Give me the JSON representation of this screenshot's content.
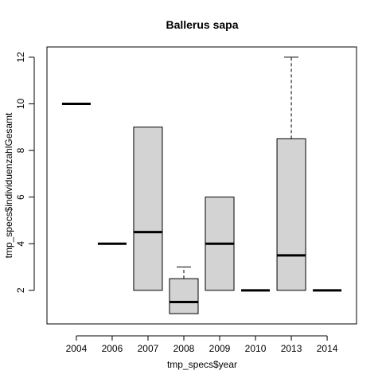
{
  "chart_data": {
    "type": "box",
    "title": "Ballerus sapa",
    "xlabel": "tmp_specs$year",
    "ylabel": "tmp_specs$individuenzahlGesamt",
    "categories": [
      "2004",
      "2006",
      "2007",
      "2008",
      "2009",
      "2010",
      "2013",
      "2014"
    ],
    "boxes": [
      {
        "category": "2004",
        "min": 10,
        "q1": 10,
        "median": 10,
        "q3": 10,
        "max": 10
      },
      {
        "category": "2006",
        "min": 4,
        "q1": 4,
        "median": 4,
        "q3": 4,
        "max": 4
      },
      {
        "category": "2007",
        "min": 2,
        "q1": 2,
        "median": 4.5,
        "q3": 9,
        "max": 9
      },
      {
        "category": "2008",
        "min": 1,
        "q1": 1,
        "median": 1.5,
        "q3": 2.5,
        "max": 3
      },
      {
        "category": "2009",
        "min": 2,
        "q1": 2,
        "median": 4,
        "q3": 6,
        "max": 6
      },
      {
        "category": "2010",
        "min": 2,
        "q1": 2,
        "median": 2,
        "q3": 2,
        "max": 2
      },
      {
        "category": "2013",
        "min": 2,
        "q1": 2,
        "median": 3.5,
        "q3": 8.5,
        "max": 12
      },
      {
        "category": "2014",
        "min": 2,
        "q1": 2,
        "median": 2,
        "q3": 2,
        "max": 2
      }
    ],
    "ylim": [
      0.56,
      12.44
    ],
    "yticks": [
      2,
      4,
      6,
      8,
      10,
      12
    ],
    "grid": false,
    "box_fill": "#d3d3d3",
    "line_color": "#000000"
  }
}
